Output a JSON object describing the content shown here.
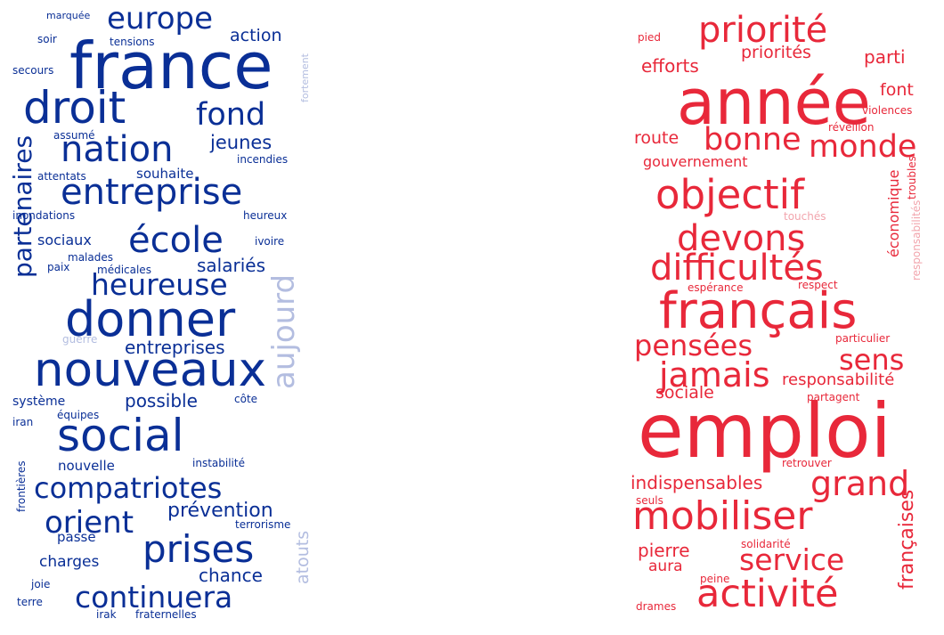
{
  "clouds": [
    {
      "id": "left",
      "colors": {
        "main": "#0a2f96",
        "faded": "#b3bde0"
      },
      "words": [
        "marquée",
        "europe",
        "soir",
        "tensions",
        "france",
        "action",
        "secours",
        "fortement",
        "droit",
        "fond",
        "assumé",
        "nation",
        "jeunes",
        "incendies",
        "partenaires",
        "souhaite",
        "attentats",
        "entreprise",
        "inondations",
        "heureux",
        "sociaux",
        "école",
        "ivoire",
        "malades",
        "paix",
        "médicales",
        "salariés",
        "heureuse",
        "aujourd",
        "donner",
        "guerre",
        "entreprises",
        "nouveaux",
        "système",
        "possible",
        "côte",
        "iran",
        "équipes",
        "social",
        "nouvelle",
        "instabilité",
        "frontières",
        "compatriotes",
        "orient",
        "prévention",
        "terrorisme",
        "passe",
        "atouts",
        "charges",
        "prises",
        "chance",
        "joie",
        "continuera",
        "terre",
        "irak",
        "fraternelles"
      ]
    },
    {
      "id": "right",
      "colors": {
        "main": "#e8283a",
        "faded": "#f2a5ad"
      },
      "words": [
        "pied",
        "priorité",
        "efforts",
        "priorités",
        "parti",
        "année",
        "font",
        "violences",
        "réveillon",
        "bonne",
        "route",
        "monde",
        "gouvernement",
        "troubles",
        "objectif",
        "économique",
        "touchés",
        "devons",
        "responsabilités",
        "difficultés",
        "espérance",
        "respect",
        "français",
        "particulier",
        "pensées",
        "sens",
        "jamais",
        "responsabilité",
        "sociale",
        "partagent",
        "emploi",
        "retrouver",
        "indispensables",
        "grand",
        "seuls",
        "mobiliser",
        "françaises",
        "pierre",
        "solidarité",
        "service",
        "aura",
        "peine",
        "activité",
        "drames"
      ]
    }
  ]
}
